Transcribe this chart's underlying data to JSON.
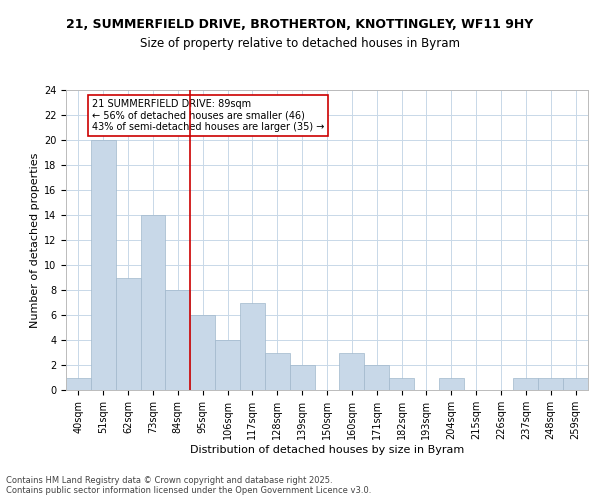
{
  "title1": "21, SUMMERFIELD DRIVE, BROTHERTON, KNOTTINGLEY, WF11 9HY",
  "title2": "Size of property relative to detached houses in Byram",
  "xlabel": "Distribution of detached houses by size in Byram",
  "ylabel": "Number of detached properties",
  "bins": [
    "40sqm",
    "51sqm",
    "62sqm",
    "73sqm",
    "84sqm",
    "95sqm",
    "106sqm",
    "117sqm",
    "128sqm",
    "139sqm",
    "150sqm",
    "160sqm",
    "171sqm",
    "182sqm",
    "193sqm",
    "204sqm",
    "215sqm",
    "226sqm",
    "237sqm",
    "248sqm",
    "259sqm"
  ],
  "counts": [
    1,
    20,
    9,
    14,
    8,
    6,
    4,
    7,
    3,
    2,
    0,
    3,
    2,
    1,
    0,
    1,
    0,
    0,
    1,
    1,
    1
  ],
  "bar_color": "#c8d8e8",
  "bar_edge_color": "#a0b8cc",
  "vline_x": 4.5,
  "vline_color": "#cc0000",
  "annotation_text": "21 SUMMERFIELD DRIVE: 89sqm\n← 56% of detached houses are smaller (46)\n43% of semi-detached houses are larger (35) →",
  "annotation_box_color": "#ffffff",
  "annotation_box_edge": "#cc0000",
  "ylim": [
    0,
    24
  ],
  "yticks": [
    0,
    2,
    4,
    6,
    8,
    10,
    12,
    14,
    16,
    18,
    20,
    22,
    24
  ],
  "footer": "Contains HM Land Registry data © Crown copyright and database right 2025.\nContains public sector information licensed under the Open Government Licence v3.0.",
  "bg_color": "#ffffff",
  "grid_color": "#c8d8e8",
  "title1_fontsize": 9,
  "title2_fontsize": 8.5,
  "axis_label_fontsize": 8,
  "tick_fontsize": 7,
  "annotation_fontsize": 7,
  "footer_fontsize": 6
}
